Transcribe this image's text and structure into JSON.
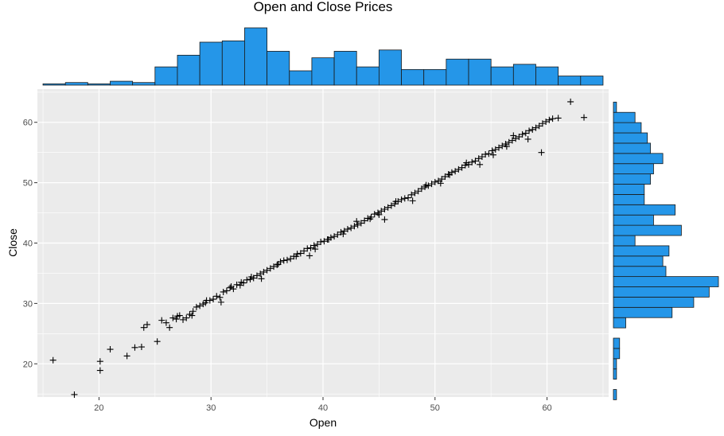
{
  "chart_data": {
    "type": "scatter",
    "title": "Open and Close Prices",
    "xlabel": "Open",
    "ylabel": "Close",
    "xlim": [
      14.5,
      65.5
    ],
    "ylim": [
      14.5,
      65.5
    ],
    "xticks": [
      20,
      30,
      40,
      50,
      60
    ],
    "yticks": [
      20,
      30,
      40,
      50,
      60
    ],
    "grid": true,
    "marker": "plus",
    "series": [
      {
        "x": [
          15.9,
          17.8,
          20.1,
          20.1,
          21.0,
          22.5,
          23.2,
          23.8,
          24.0,
          24.3,
          25.2,
          25.6,
          26.0,
          26.3,
          26.6,
          26.9,
          27.2,
          27.5,
          27.8,
          28.1,
          28.4,
          28.7,
          29.0,
          29.3,
          29.6,
          29.9,
          30.2,
          30.5,
          30.8,
          31.1,
          31.4,
          31.7,
          32.0,
          32.3,
          32.6,
          32.9,
          33.2,
          33.5,
          33.8,
          34.1,
          34.4,
          34.7,
          35.0,
          35.3,
          35.6,
          35.9,
          36.2,
          36.5,
          36.8,
          37.1,
          37.4,
          37.7,
          38.0,
          38.3,
          38.6,
          38.9,
          39.2,
          39.5,
          39.8,
          40.1,
          40.4,
          40.7,
          41.0,
          41.3,
          41.6,
          41.9,
          42.2,
          42.5,
          42.8,
          43.1,
          43.4,
          43.7,
          44.0,
          44.3,
          44.6,
          44.9,
          45.2,
          45.5,
          45.8,
          46.1,
          46.4,
          46.7,
          47.0,
          47.3,
          47.6,
          47.9,
          48.2,
          48.5,
          48.8,
          49.1,
          49.4,
          49.7,
          50.0,
          50.3,
          50.6,
          50.9,
          51.2,
          51.5,
          51.8,
          52.1,
          52.4,
          52.7,
          53.0,
          53.3,
          53.6,
          53.9,
          54.2,
          54.5,
          54.8,
          55.1,
          55.4,
          55.7,
          56.0,
          56.3,
          56.6,
          56.9,
          57.2,
          57.5,
          57.8,
          58.1,
          58.4,
          58.7,
          59.0,
          59.3,
          59.6,
          59.9,
          60.2,
          60.5,
          61.0,
          62.1,
          63.3,
          27.0,
          28.3,
          29.5,
          30.9,
          31.8,
          32.7,
          33.6,
          34.5,
          36.0,
          37.6,
          38.8,
          40.5,
          41.8,
          43.0,
          44.2,
          45.0,
          46.5,
          48.0,
          49.2,
          50.5,
          51.3,
          52.8,
          54.0,
          55.2,
          56.4,
          57.0,
          58.3,
          59.5,
          45.5,
          39.3
        ],
        "y": [
          20.6,
          14.9,
          18.9,
          20.4,
          22.4,
          21.3,
          22.7,
          22.8,
          26.0,
          26.5,
          23.7,
          27.2,
          26.8,
          26.0,
          27.6,
          27.4,
          28.0,
          27.3,
          27.6,
          28.2,
          28.7,
          29.4,
          29.6,
          29.9,
          30.5,
          30.5,
          30.7,
          31.2,
          31.0,
          31.9,
          32.1,
          32.6,
          32.4,
          33.1,
          33.0,
          33.4,
          33.9,
          34.0,
          34.2,
          34.6,
          34.9,
          35.2,
          35.5,
          35.8,
          36.1,
          36.4,
          36.9,
          37.1,
          37.2,
          37.4,
          37.8,
          38.2,
          38.3,
          38.7,
          39.1,
          39.2,
          39.6,
          39.8,
          40.2,
          40.3,
          40.6,
          40.9,
          41.1,
          41.4,
          41.8,
          42.0,
          42.3,
          42.5,
          42.8,
          43.0,
          43.3,
          43.7,
          44.1,
          44.3,
          44.8,
          45.0,
          45.3,
          45.6,
          45.9,
          46.2,
          46.5,
          46.9,
          47.2,
          47.4,
          47.5,
          48.0,
          48.3,
          48.6,
          49.0,
          49.3,
          49.5,
          49.8,
          50.1,
          50.3,
          50.6,
          51.0,
          51.4,
          51.7,
          51.9,
          52.2,
          52.5,
          52.9,
          53.0,
          53.4,
          53.6,
          54.0,
          54.3,
          54.7,
          54.8,
          55.3,
          55.5,
          55.8,
          56.1,
          56.4,
          56.7,
          57.0,
          57.3,
          57.6,
          58.0,
          58.2,
          58.6,
          58.8,
          59.1,
          59.4,
          59.8,
          60.1,
          60.4,
          60.6,
          60.7,
          63.4,
          60.8,
          27.9,
          28.0,
          30.1,
          30.2,
          32.8,
          33.5,
          34.4,
          34.1,
          36.5,
          37.8,
          37.9,
          40.6,
          41.5,
          43.6,
          44.0,
          44.7,
          46.9,
          47.0,
          49.6,
          49.9,
          51.3,
          53.3,
          53.0,
          54.6,
          56.0,
          57.8,
          57.2,
          55.0,
          43.9,
          39.0
        ]
      }
    ],
    "top_histogram": {
      "axis": "Open",
      "bin_centers": [
        16,
        18,
        20,
        22,
        24,
        26,
        28,
        30,
        32,
        34,
        36,
        38,
        40,
        42,
        44,
        46,
        48,
        50,
        52,
        54,
        56,
        58,
        60,
        62,
        64
      ],
      "counts": [
        1,
        2,
        1,
        3,
        2,
        14,
        23,
        33,
        34,
        44,
        26,
        11,
        21,
        26,
        14,
        27,
        12,
        12,
        20,
        20,
        14,
        16,
        14,
        7,
        7
      ]
    },
    "right_histogram": {
      "axis": "Close",
      "bin_centers": [
        14.9,
        16.6,
        18.3,
        20.0,
        21.7,
        23.4,
        25.1,
        26.8,
        28.5,
        30.2,
        31.9,
        33.6,
        35.3,
        37.0,
        38.7,
        40.4,
        42.1,
        43.8,
        45.5,
        47.2,
        48.9,
        50.6,
        52.3,
        54.0,
        55.7,
        57.4,
        59.1,
        60.8,
        62.5
      ],
      "counts": [
        1,
        0,
        1,
        1,
        2,
        2,
        0,
        4,
        19,
        26,
        31,
        34,
        17,
        16,
        18,
        7,
        22,
        13,
        20,
        10,
        10,
        12,
        13,
        16,
        12,
        11,
        9,
        7,
        1
      ]
    }
  }
}
